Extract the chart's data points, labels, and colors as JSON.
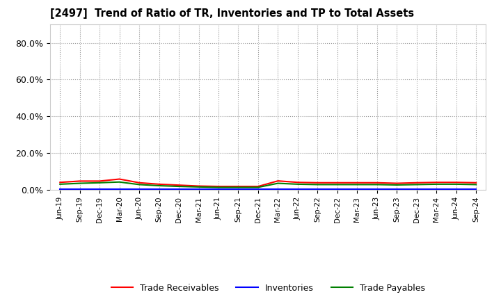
{
  "title": "[2497]  Trend of Ratio of TR, Inventories and TP to Total Assets",
  "x_labels": [
    "Jun-19",
    "Sep-19",
    "Dec-19",
    "Mar-20",
    "Jun-20",
    "Sep-20",
    "Dec-20",
    "Mar-21",
    "Jun-21",
    "Sep-21",
    "Dec-21",
    "Mar-22",
    "Jun-22",
    "Sep-22",
    "Dec-22",
    "Mar-23",
    "Jun-23",
    "Sep-23",
    "Dec-23",
    "Mar-24",
    "Jun-24",
    "Sep-24"
  ],
  "trade_receivables": [
    0.04,
    0.047,
    0.047,
    0.058,
    0.038,
    0.03,
    0.025,
    0.02,
    0.018,
    0.018,
    0.018,
    0.048,
    0.04,
    0.038,
    0.038,
    0.038,
    0.038,
    0.035,
    0.038,
    0.04,
    0.04,
    0.038
  ],
  "inventories": [
    0.002,
    0.002,
    0.002,
    0.002,
    0.002,
    0.002,
    0.002,
    0.002,
    0.002,
    0.002,
    0.002,
    0.002,
    0.002,
    0.002,
    0.002,
    0.002,
    0.002,
    0.002,
    0.002,
    0.002,
    0.002,
    0.002
  ],
  "trade_payables": [
    0.03,
    0.035,
    0.038,
    0.042,
    0.028,
    0.022,
    0.018,
    0.015,
    0.013,
    0.013,
    0.013,
    0.035,
    0.03,
    0.028,
    0.028,
    0.028,
    0.028,
    0.026,
    0.028,
    0.03,
    0.03,
    0.028
  ],
  "line_colors": {
    "trade_receivables": "#ff0000",
    "inventories": "#0000ff",
    "trade_payables": "#008000"
  },
  "ylim": [
    0.0,
    0.9
  ],
  "yticks": [
    0.0,
    0.2,
    0.4,
    0.6,
    0.8
  ],
  "legend_labels": [
    "Trade Receivables",
    "Inventories",
    "Trade Payables"
  ],
  "background_color": "#ffffff",
  "plot_bg_color": "#ffffff",
  "grid_color": "#999999"
}
